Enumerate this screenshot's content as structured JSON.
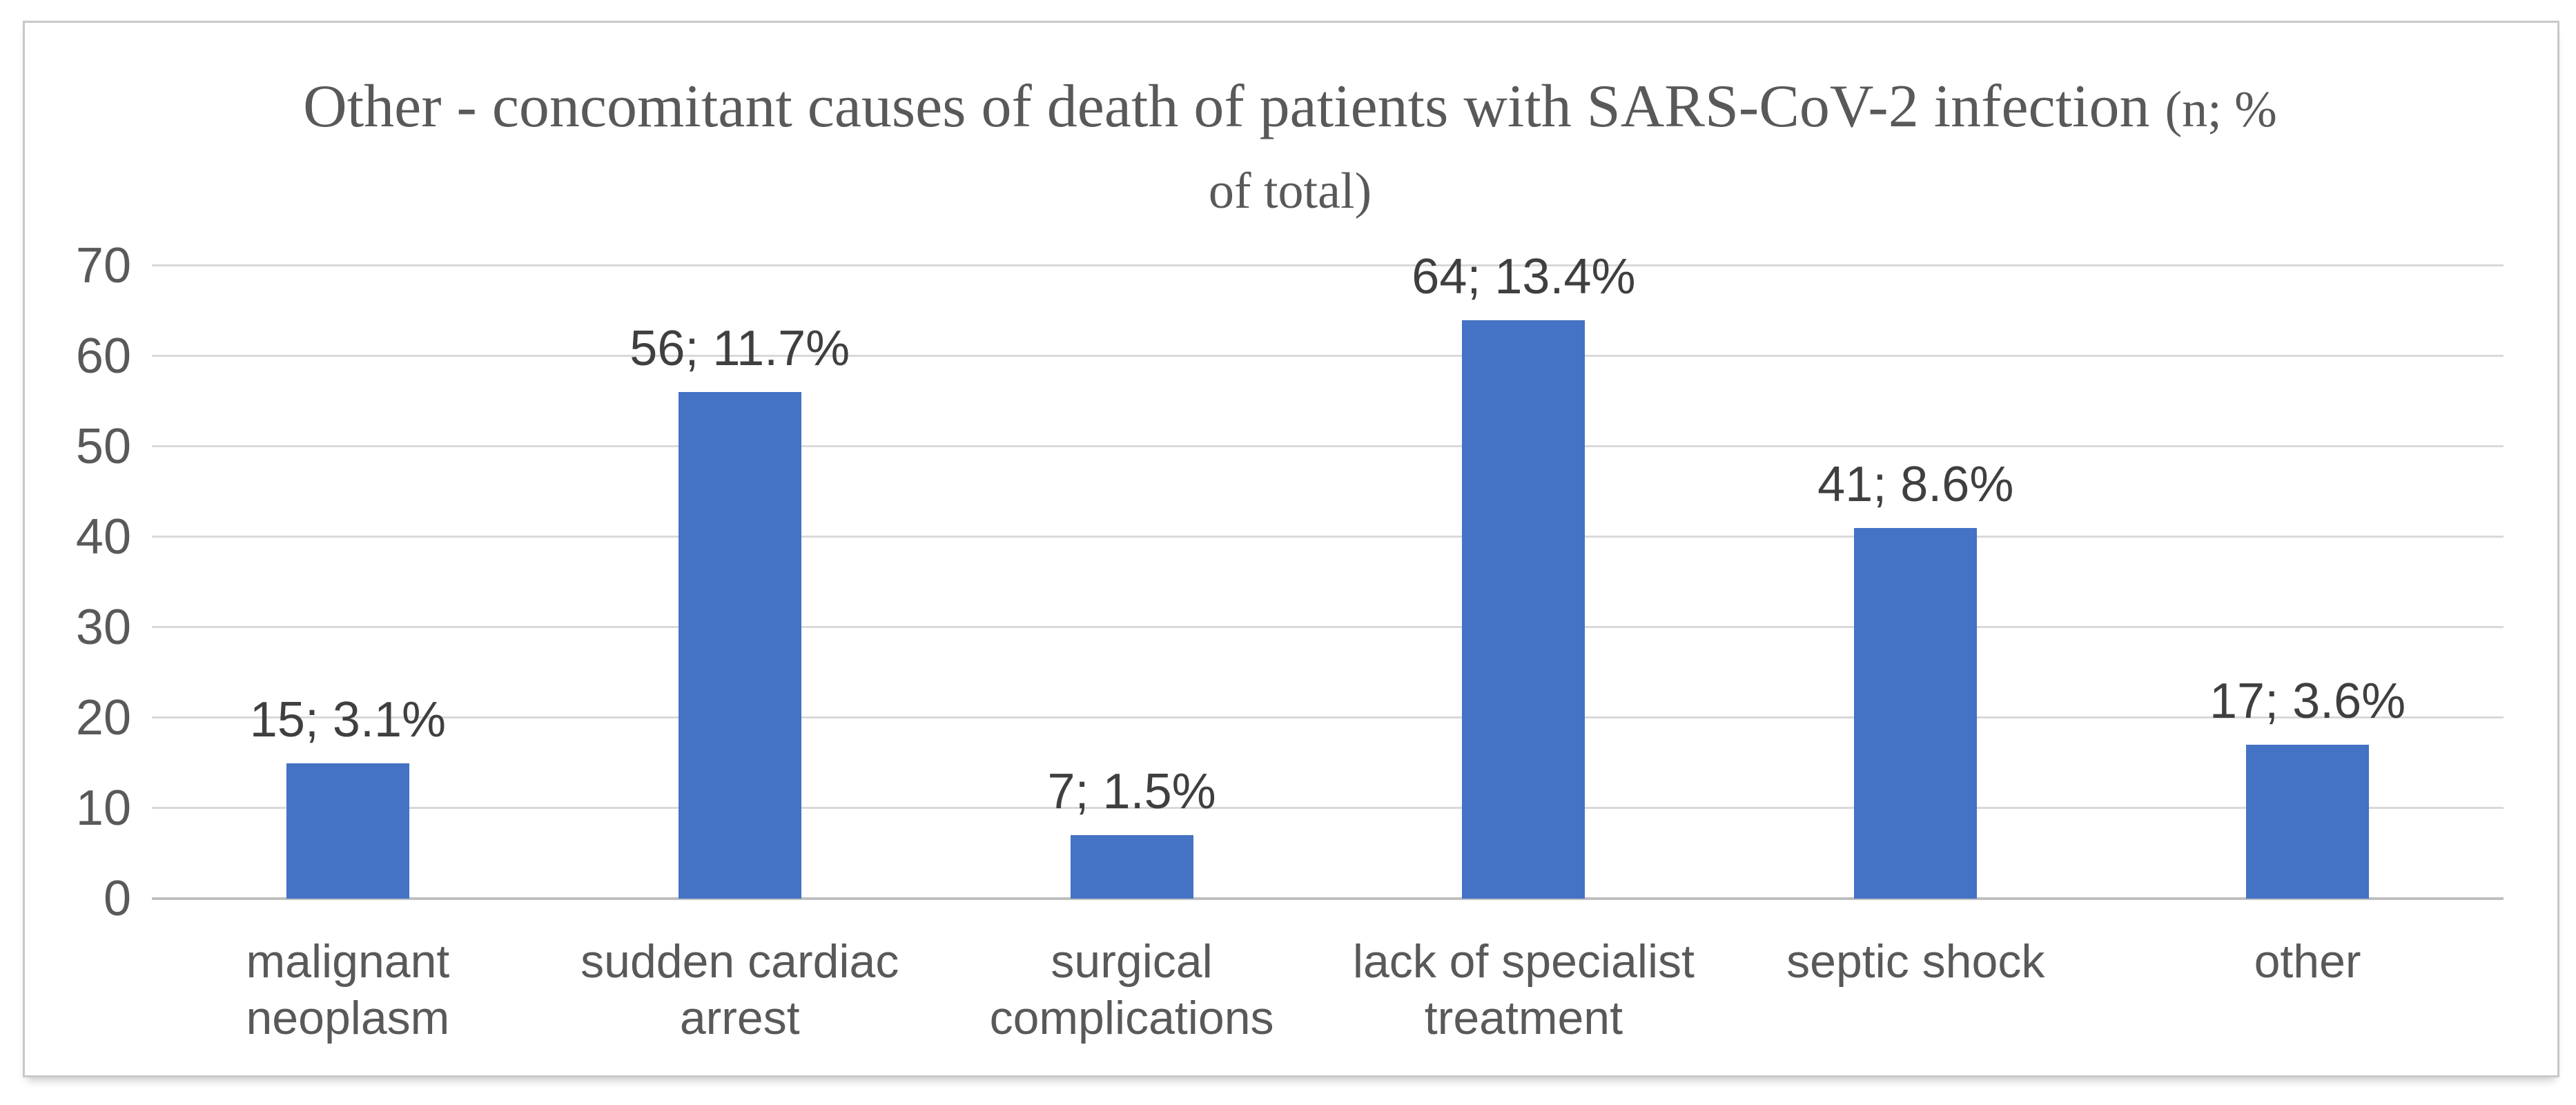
{
  "title": {
    "full": "Other - concomitant causes of death of patients with SARS-CoV-2 infection (n; % of total)",
    "main": "Other - concomitant causes of death of patients with SARS-CoV-2 infection",
    "paren_line1": "(n; %",
    "paren_line2": "of total)"
  },
  "chart_data": {
    "type": "bar",
    "title": "Other - concomitant causes of death of patients with SARS-CoV-2 infection (n; % of total)",
    "categories": [
      "malignant neoplasm",
      "sudden cardiac arrest",
      "surgical complications",
      "lack of specialist treatment",
      "septic shock",
      "other"
    ],
    "category_lines": [
      [
        "malignant",
        "neoplasm"
      ],
      [
        "sudden cardiac",
        "arrest"
      ],
      [
        "surgical",
        "complications"
      ],
      [
        "lack of specialist",
        "treatment"
      ],
      [
        "septic shock"
      ],
      [
        "other"
      ]
    ],
    "values": [
      15,
      56,
      7,
      64,
      41,
      17
    ],
    "percent_of_total": [
      3.1,
      11.7,
      1.5,
      13.4,
      8.6,
      3.6
    ],
    "data_labels": [
      "15; 3.1%",
      "56; 11.7%",
      "7; 1.5%",
      "64; 13.4%",
      "41; 8.6%",
      "17; 3.6%"
    ],
    "xlabel": "",
    "ylabel": "",
    "ylim": [
      0,
      70
    ],
    "yticks": [
      0,
      10,
      20,
      30,
      40,
      50,
      60,
      70
    ],
    "grid": true,
    "legend": false,
    "colors": {
      "bar": "#4472c4",
      "gridline": "#d9d9d9",
      "axis_line": "#bfbfbf",
      "tick_text": "#595959",
      "category_text": "#595959",
      "data_label_text": "#3f3f3f",
      "title_text": "#595959",
      "frame_border": "#c8c8c8",
      "background": "#ffffff"
    }
  }
}
